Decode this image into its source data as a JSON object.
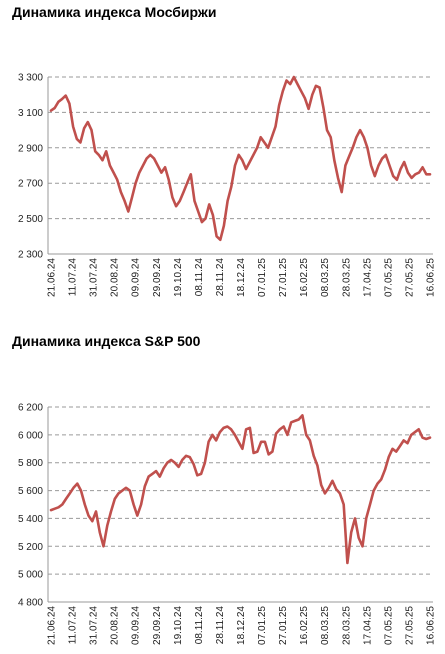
{
  "charts": [
    {
      "title": "Динамика индекса Мосбиржи",
      "chart_data": {
        "type": "line",
        "ylim": [
          2300,
          3300
        ],
        "yticks": [
          2300,
          2500,
          2700,
          2900,
          3100,
          3300
        ],
        "ytick_labels": [
          "2 300",
          "2 500",
          "2 700",
          "2 900",
          "3 100",
          "3 300"
        ],
        "xtick_labels": [
          "21.06.24",
          "11.07.24",
          "31.07.24",
          "20.08.24",
          "09.09.24",
          "29.09.24",
          "19.10.24",
          "08.11.24",
          "28.11.24",
          "18.12.24",
          "07.01.25",
          "27.01.25",
          "16.02.25",
          "08.03.25",
          "28.03.25",
          "17.04.25",
          "07.05.25",
          "27.05.25",
          "16.06.25"
        ],
        "grid": "horizontal-dashed",
        "line_color": "#c0504d",
        "series": [
          {
            "values": [
              3110,
              3125,
              3160,
              3175,
              3195,
              3150,
              3020,
              2950,
              2930,
              3010,
              3045,
              3000,
              2880,
              2860,
              2830,
              2880,
              2800,
              2760,
              2720,
              2650,
              2600,
              2540,
              2620,
              2700,
              2760,
              2800,
              2840,
              2860,
              2840,
              2800,
              2760,
              2790,
              2720,
              2620,
              2570,
              2600,
              2650,
              2700,
              2750,
              2600,
              2540,
              2480,
              2500,
              2580,
              2520,
              2400,
              2380,
              2460,
              2600,
              2680,
              2800,
              2860,
              2830,
              2780,
              2820,
              2860,
              2900,
              2960,
              2930,
              2900,
              2960,
              3020,
              3140,
              3220,
              3280,
              3260,
              3300,
              3260,
              3220,
              3180,
              3120,
              3200,
              3250,
              3240,
              3130,
              3000,
              2960,
              2830,
              2730,
              2650,
              2800,
              2850,
              2900,
              2960,
              3000,
              2960,
              2900,
              2800,
              2740,
              2800,
              2840,
              2860,
              2800,
              2740,
              2720,
              2780,
              2820,
              2760,
              2730,
              2750,
              2760,
              2790,
              2750,
              2750
            ]
          }
        ]
      }
    },
    {
      "title": "Динамика индекса S&P 500",
      "chart_data": {
        "type": "line",
        "ylim": [
          4800,
          6200
        ],
        "yticks": [
          4800,
          5000,
          5200,
          5400,
          5600,
          5800,
          6000,
          6200
        ],
        "ytick_labels": [
          "4 800",
          "5 000",
          "5 200",
          "5 400",
          "5 600",
          "5 800",
          "6 000",
          "6 200"
        ],
        "xtick_labels": [
          "21.06.24",
          "11.07.24",
          "31.07.24",
          "20.08.24",
          "09.09.24",
          "29.09.24",
          "19.10.24",
          "08.11.24",
          "28.11.24",
          "18.12.24",
          "07.01.25",
          "27.01.25",
          "16.02.25",
          "08.03.25",
          "28.03.25",
          "17.04.25",
          "07.05.25",
          "27.05.25",
          "16.06.25"
        ],
        "grid": "horizontal-dashed",
        "line_color": "#c0504d",
        "series": [
          {
            "values": [
              5460,
              5470,
              5480,
              5500,
              5540,
              5580,
              5620,
              5650,
              5600,
              5500,
              5420,
              5380,
              5450,
              5300,
              5200,
              5350,
              5450,
              5540,
              5580,
              5600,
              5620,
              5600,
              5500,
              5420,
              5500,
              5630,
              5700,
              5720,
              5740,
              5700,
              5760,
              5800,
              5820,
              5800,
              5770,
              5820,
              5850,
              5840,
              5790,
              5710,
              5720,
              5800,
              5950,
              6000,
              5960,
              6020,
              6050,
              6060,
              6040,
              6000,
              5950,
              5900,
              6040,
              6050,
              5870,
              5880,
              5950,
              5950,
              5860,
              5880,
              6010,
              6040,
              6060,
              6000,
              6090,
              6100,
              6110,
              6140,
              6000,
              5960,
              5850,
              5780,
              5640,
              5580,
              5620,
              5670,
              5610,
              5580,
              5500,
              5080,
              5300,
              5400,
              5260,
              5200,
              5400,
              5500,
              5600,
              5650,
              5680,
              5750,
              5840,
              5900,
              5880,
              5920,
              5960,
              5940,
              6000,
              6020,
              6040,
              5980,
              5970,
              5980
            ]
          }
        ]
      }
    }
  ]
}
